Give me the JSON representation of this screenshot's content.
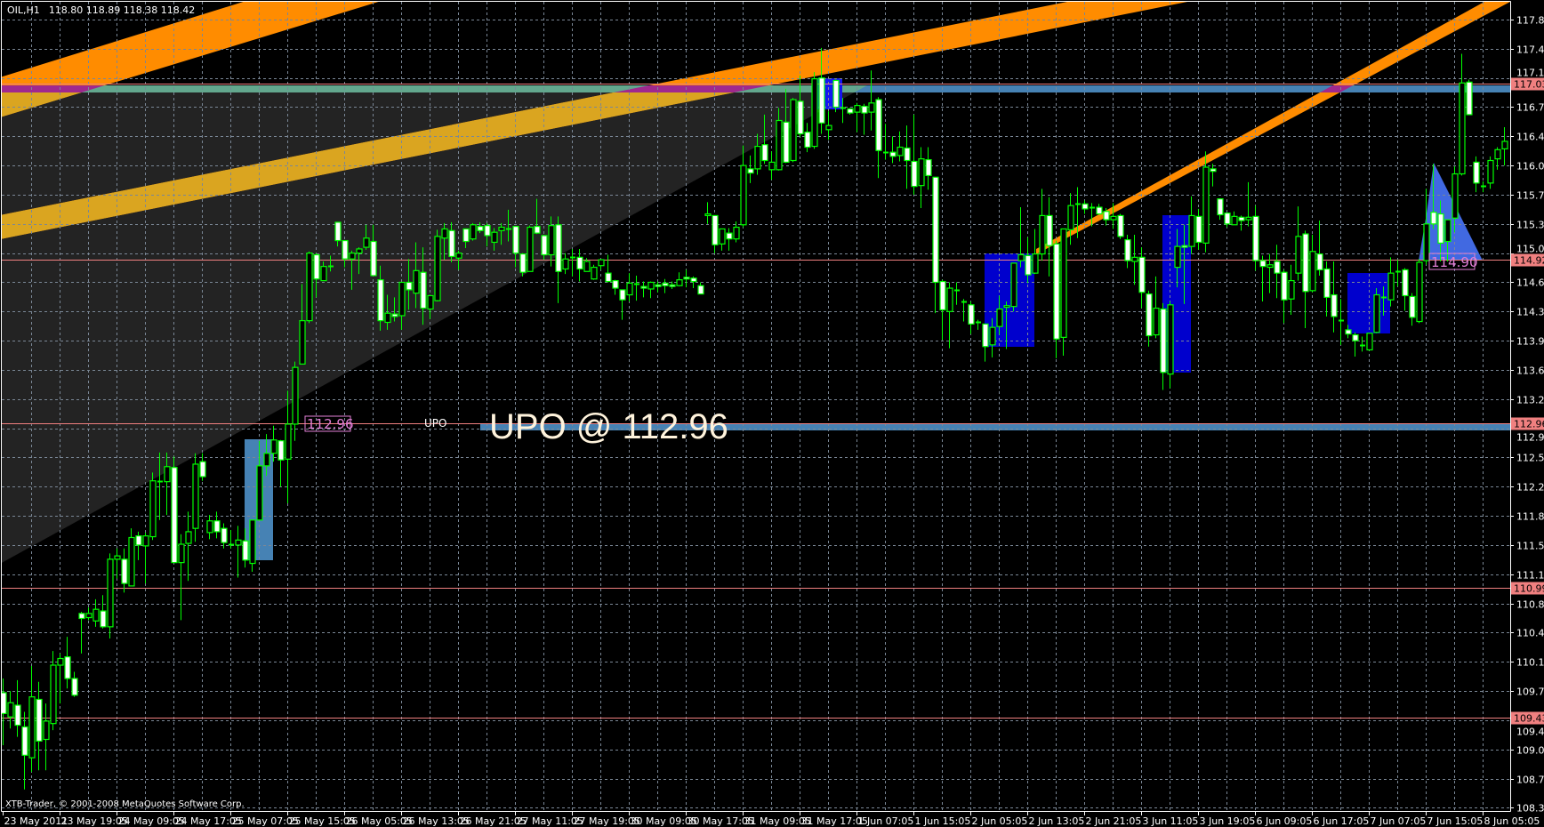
{
  "title": {
    "symbol": "OIL,H1",
    "ohlc": "118.80 118.89 118.38 118.42"
  },
  "copyright": "XTB-Trader, © 2001-2008 MetaQuotes Software Corp.",
  "colors": {
    "background": "#000000",
    "grid": "#7A8796",
    "candle_outline": "#00FF00",
    "bear_fill": "#FFFFFF",
    "bull_fill": "#000000",
    "price_line": "#F08080",
    "channel": "#FF8C00",
    "channel_in_zone": "#DAA520",
    "zone": "#232323",
    "band": "#4682B4",
    "box": "#0000CD",
    "triangle": "#4169E1"
  },
  "annotations": {
    "label_114_90": "114.90",
    "label_112_96": "112.96",
    "upo_small": "UPO",
    "upo_big": "UPO @ 112.96"
  },
  "chart_data": {
    "type": "candlestick",
    "timeframe": "H1",
    "ylim": [
      108.2,
      117.99
    ],
    "grid": true,
    "y_ticks": [
      "117.80",
      "117.45",
      "117.10",
      "116.75",
      "116.40",
      "116.05",
      "115.70",
      "115.35",
      "115.00",
      "114.65",
      "114.30",
      "113.95",
      "113.60",
      "113.25",
      "112.90",
      "112.55",
      "112.20",
      "111.85",
      "111.50",
      "111.15",
      "110.80",
      "110.45",
      "110.10",
      "109.75",
      "109.40",
      "109.05",
      "108.70",
      "108.35"
    ],
    "x_ticks": [
      "23 May 2011",
      "23 May 19:05",
      "24 May 09:05",
      "24 May 17:05",
      "25 May 07:05",
      "25 May 15:05",
      "26 May 05:05",
      "26 May 13:05",
      "26 May 21:05",
      "27 May 11:05",
      "27 May 19:05",
      "30 May 09:05",
      "30 May 17:05",
      "31 May 09:05",
      "31 May 17:05",
      "1 Jun 07:05",
      "1 Jun 15:05",
      "2 Jun 05:05",
      "2 Jun 13:05",
      "2 Jun 21:05",
      "3 Jun 11:05",
      "3 Jun 19:05",
      "6 Jun 09:05",
      "6 Jun 17:05",
      "7 Jun 07:05",
      "7 Jun 15:05",
      "8 Jun 05:05"
    ],
    "price_lines": [
      {
        "price": 117.03,
        "label": "117.03"
      },
      {
        "price": 114.92,
        "label": "114.92"
      },
      {
        "price": 112.96,
        "label": "112.96"
      },
      {
        "price": 110.99,
        "label": "110.99"
      },
      {
        "price": 109.43,
        "label": "109.43"
      }
    ],
    "candles_ohlc": [
      [
        109.73,
        109.9,
        109.1,
        109.48
      ],
      [
        109.44,
        109.75,
        109.3,
        109.61
      ],
      [
        109.58,
        109.88,
        109.2,
        109.34
      ],
      [
        109.32,
        109.5,
        108.57,
        108.98
      ],
      [
        108.95,
        110.05,
        108.78,
        109.68
      ],
      [
        109.65,
        109.86,
        108.8,
        109.15
      ],
      [
        109.17,
        109.6,
        108.8,
        109.39
      ],
      [
        109.36,
        110.23,
        109.28,
        110.06
      ],
      [
        110.06,
        110.2,
        109.6,
        110.14
      ],
      [
        110.16,
        110.4,
        109.78,
        109.9
      ],
      [
        109.9,
        109.98,
        109.68,
        109.7
      ],
      [
        110.68,
        110.7,
        110.2,
        110.62
      ],
      [
        110.63,
        110.75,
        110.6,
        110.68
      ],
      [
        110.59,
        110.85,
        110.52,
        110.73
      ],
      [
        110.71,
        110.9,
        110.5,
        110.52
      ],
      [
        110.52,
        111.4,
        110.38,
        111.33
      ],
      [
        111.33,
        111.46,
        111.1,
        111.37
      ],
      [
        111.33,
        111.46,
        110.93,
        111.04
      ],
      [
        111.01,
        111.7,
        111.01,
        111.59
      ],
      [
        111.61,
        111.66,
        111.32,
        111.5
      ],
      [
        111.49,
        111.65,
        111.04,
        111.61
      ],
      [
        111.6,
        112.37,
        111.56,
        112.27
      ],
      [
        112.27,
        112.61,
        111.8,
        112.27
      ],
      [
        112.26,
        112.61,
        111.86,
        112.44
      ],
      [
        112.43,
        112.56,
        111.29,
        111.29
      ],
      [
        111.29,
        111.63,
        110.6,
        111.51
      ],
      [
        111.52,
        111.9,
        111.07,
        111.66
      ],
      [
        111.7,
        112.6,
        111.54,
        112.47
      ],
      [
        112.5,
        112.6,
        112.27,
        112.32
      ],
      [
        111.65,
        111.86,
        111.57,
        111.79
      ],
      [
        111.79,
        111.9,
        111.58,
        111.66
      ],
      [
        111.7,
        111.76,
        111.46,
        111.53
      ],
      [
        111.51,
        111.68,
        111.46,
        111.51
      ],
      [
        111.5,
        111.73,
        111.11,
        111.56
      ],
      [
        111.55,
        111.7,
        111.23,
        111.32
      ],
      [
        111.28,
        111.8,
        111.18,
        111.8
      ],
      [
        111.8,
        112.75,
        111.8,
        112.45
      ],
      [
        112.45,
        112.83,
        112.33,
        112.6
      ],
      [
        112.6,
        112.93,
        112.5,
        112.76
      ],
      [
        112.75,
        112.76,
        112.2,
        112.52
      ],
      [
        112.53,
        113.35,
        112.0,
        112.95
      ],
      [
        112.95,
        113.7,
        112.75,
        113.63
      ],
      [
        113.67,
        114.63,
        113.67,
        114.19
      ],
      [
        114.19,
        115.02,
        114.16,
        115.0
      ],
      [
        114.98,
        115.0,
        114.47,
        114.69
      ],
      [
        114.67,
        114.9,
        114.67,
        114.84
      ],
      [
        114.85,
        114.97,
        114.78,
        114.85
      ],
      [
        115.37,
        115.37,
        115.08,
        115.15
      ],
      [
        115.15,
        115.15,
        114.83,
        114.93
      ],
      [
        114.93,
        115.03,
        114.56,
        115.0
      ],
      [
        115.0,
        115.07,
        114.75,
        115.05
      ],
      [
        115.07,
        115.34,
        115.04,
        115.18
      ],
      [
        115.14,
        115.34,
        114.73,
        114.73
      ],
      [
        114.68,
        114.85,
        114.07,
        114.19
      ],
      [
        114.17,
        114.5,
        114.08,
        114.28
      ],
      [
        114.27,
        114.47,
        114.18,
        114.24
      ],
      [
        114.25,
        114.65,
        114.08,
        114.65
      ],
      [
        114.65,
        114.93,
        114.32,
        114.56
      ],
      [
        114.52,
        115.13,
        114.34,
        114.79
      ],
      [
        114.77,
        115.07,
        114.14,
        114.34
      ],
      [
        114.33,
        114.5,
        114.21,
        114.49
      ],
      [
        114.43,
        115.28,
        114.42,
        115.2
      ],
      [
        115.18,
        115.36,
        114.92,
        115.29
      ],
      [
        115.27,
        115.37,
        114.89,
        114.96
      ],
      [
        114.94,
        115.03,
        114.8,
        115.0
      ],
      [
        115.29,
        115.29,
        115.06,
        115.14
      ],
      [
        115.17,
        115.36,
        115.15,
        115.34
      ],
      [
        115.32,
        115.37,
        115.24,
        115.27
      ],
      [
        115.33,
        115.36,
        115.08,
        115.21
      ],
      [
        115.13,
        115.3,
        115.03,
        115.25
      ],
      [
        115.27,
        115.36,
        115.1,
        115.31
      ],
      [
        115.3,
        115.52,
        115.14,
        115.3
      ],
      [
        115.32,
        115.32,
        114.83,
        115.0
      ],
      [
        114.99,
        115.0,
        114.72,
        114.77
      ],
      [
        114.78,
        115.33,
        114.78,
        115.31
      ],
      [
        115.32,
        115.65,
        115.23,
        115.24
      ],
      [
        115.21,
        115.22,
        114.92,
        114.98
      ],
      [
        114.98,
        115.44,
        114.84,
        115.33
      ],
      [
        115.34,
        115.44,
        114.4,
        114.78
      ],
      [
        114.81,
        115.0,
        114.75,
        114.93
      ],
      [
        114.95,
        115.05,
        114.72,
        114.95
      ],
      [
        114.95,
        115.05,
        114.66,
        114.81
      ],
      [
        114.78,
        114.94,
        114.78,
        114.9
      ],
      [
        114.69,
        114.86,
        114.68,
        114.83
      ],
      [
        114.85,
        114.93,
        114.8,
        114.92
      ],
      [
        114.76,
        114.98,
        114.65,
        114.66
      ],
      [
        114.67,
        114.68,
        114.5,
        114.58
      ],
      [
        114.56,
        114.56,
        114.2,
        114.44
      ],
      [
        114.5,
        114.76,
        114.42,
        114.64
      ],
      [
        114.63,
        114.73,
        114.43,
        114.63
      ],
      [
        114.6,
        114.66,
        114.47,
        114.58
      ],
      [
        114.57,
        114.66,
        114.46,
        114.65
      ],
      [
        114.62,
        114.66,
        114.53,
        114.6
      ],
      [
        114.64,
        114.69,
        114.52,
        114.61
      ],
      [
        114.62,
        114.66,
        114.57,
        114.6
      ],
      [
        114.61,
        114.77,
        114.6,
        114.68
      ],
      [
        114.71,
        114.8,
        114.59,
        114.69
      ],
      [
        114.7,
        114.72,
        114.58,
        114.66
      ],
      [
        114.61,
        114.65,
        114.51,
        114.51
      ],
      [
        115.45,
        115.61,
        115.35,
        115.47
      ],
      [
        115.45,
        115.45,
        115.0,
        115.1
      ],
      [
        115.11,
        115.29,
        115.03,
        115.29
      ],
      [
        115.24,
        115.3,
        115.03,
        115.17
      ],
      [
        115.17,
        115.38,
        115.13,
        115.31
      ],
      [
        115.34,
        116.29,
        115.31,
        116.05
      ],
      [
        116.01,
        116.17,
        115.84,
        115.96
      ],
      [
        116.01,
        116.43,
        115.94,
        116.28
      ],
      [
        116.3,
        116.66,
        116.07,
        116.11
      ],
      [
        116.0,
        116.22,
        115.88,
        116.09
      ],
      [
        116.0,
        116.74,
        115.99,
        116.59
      ],
      [
        116.57,
        116.97,
        116.08,
        116.09
      ],
      [
        116.11,
        116.86,
        116.09,
        116.84
      ],
      [
        116.82,
        117.13,
        116.39,
        116.43
      ],
      [
        116.45,
        116.56,
        116.21,
        116.27
      ],
      [
        116.28,
        117.17,
        116.25,
        117.09
      ],
      [
        117.1,
        117.46,
        116.43,
        116.56
      ],
      [
        116.48,
        116.7,
        116.36,
        116.53
      ],
      [
        117.07,
        117.08,
        116.69,
        116.75
      ],
      [
        116.74,
        116.86,
        116.56,
        116.73
      ],
      [
        116.73,
        116.74,
        116.66,
        116.68
      ],
      [
        116.69,
        116.8,
        116.45,
        116.77
      ],
      [
        116.76,
        116.79,
        116.42,
        116.68
      ],
      [
        116.69,
        117.19,
        116.47,
        116.8
      ],
      [
        116.84,
        116.87,
        115.9,
        116.23
      ],
      [
        116.21,
        116.55,
        116.12,
        116.2
      ],
      [
        116.21,
        116.4,
        116.08,
        116.16
      ],
      [
        116.17,
        116.46,
        116.1,
        116.27
      ],
      [
        116.26,
        116.53,
        115.77,
        116.11
      ],
      [
        116.1,
        116.66,
        115.7,
        115.8
      ],
      [
        115.81,
        116.27,
        115.54,
        116.13
      ],
      [
        116.12,
        116.27,
        115.76,
        115.93
      ],
      [
        115.91,
        115.91,
        114.28,
        114.65
      ],
      [
        114.66,
        114.68,
        113.96,
        114.32
      ],
      [
        114.3,
        114.65,
        113.86,
        114.58
      ],
      [
        114.56,
        114.65,
        114.38,
        114.56
      ],
      [
        114.42,
        114.45,
        114.18,
        114.42
      ],
      [
        114.38,
        114.42,
        114.03,
        114.15
      ],
      [
        114.18,
        114.2,
        114.08,
        114.18
      ],
      [
        114.15,
        114.15,
        113.7,
        113.88
      ],
      [
        113.9,
        114.22,
        113.75,
        114.11
      ],
      [
        114.12,
        114.49,
        114.02,
        114.33
      ],
      [
        114.35,
        114.42,
        113.85,
        114.37
      ],
      [
        114.36,
        114.88,
        114.3,
        114.88
      ],
      [
        114.91,
        115.55,
        114.83,
        114.98
      ],
      [
        114.97,
        115.19,
        114.64,
        114.74
      ],
      [
        114.76,
        115.29,
        114.75,
        114.99
      ],
      [
        114.99,
        115.77,
        114.91,
        115.45
      ],
      [
        115.45,
        115.67,
        114.72,
        115.09
      ],
      [
        115.11,
        115.15,
        113.74,
        113.97
      ],
      [
        113.99,
        115.29,
        113.77,
        115.29
      ],
      [
        115.28,
        115.72,
        115.1,
        115.57
      ],
      [
        115.59,
        115.79,
        115.18,
        115.59
      ],
      [
        115.59,
        115.63,
        115.47,
        115.53
      ],
      [
        115.55,
        115.6,
        115.32,
        115.55
      ],
      [
        115.55,
        115.59,
        115.46,
        115.47
      ],
      [
        115.5,
        115.54,
        115.33,
        115.4
      ],
      [
        115.4,
        115.6,
        115.29,
        115.44
      ],
      [
        115.45,
        115.47,
        115.17,
        115.2
      ],
      [
        115.16,
        115.22,
        114.82,
        114.91
      ],
      [
        114.9,
        115.22,
        114.62,
        114.95
      ],
      [
        114.95,
        115.07,
        114.34,
        114.53
      ],
      [
        114.51,
        114.55,
        113.88,
        114.01
      ],
      [
        114.02,
        114.72,
        113.98,
        114.34
      ],
      [
        114.33,
        114.4,
        113.36,
        113.57
      ],
      [
        113.55,
        114.42,
        113.38,
        114.38
      ],
      [
        114.83,
        115.29,
        114.59,
        115.08
      ],
      [
        115.09,
        115.34,
        114.39,
        115.07
      ],
      [
        115.08,
        115.68,
        114.99,
        115.45
      ],
      [
        115.44,
        115.53,
        115.04,
        115.13
      ],
      [
        115.12,
        116.22,
        115.01,
        116.03
      ],
      [
        116.01,
        116.07,
        115.8,
        115.98
      ],
      [
        115.65,
        115.65,
        115.4,
        115.46
      ],
      [
        115.48,
        115.48,
        115.31,
        115.35
      ],
      [
        115.34,
        115.5,
        115.34,
        115.44
      ],
      [
        115.43,
        115.45,
        115.27,
        115.39
      ],
      [
        115.4,
        115.85,
        115.32,
        115.43
      ],
      [
        115.44,
        115.57,
        114.79,
        114.91
      ],
      [
        114.91,
        114.97,
        114.42,
        114.84
      ],
      [
        114.83,
        114.99,
        114.52,
        114.86
      ],
      [
        114.9,
        115.1,
        114.46,
        114.76
      ],
      [
        114.77,
        114.8,
        114.16,
        114.44
      ],
      [
        114.45,
        114.86,
        114.26,
        114.67
      ],
      [
        114.76,
        115.56,
        114.67,
        115.2
      ],
      [
        115.23,
        115.27,
        114.1,
        114.54
      ],
      [
        114.55,
        115.22,
        114.53,
        115.02
      ],
      [
        114.99,
        115.39,
        114.73,
        114.8
      ],
      [
        114.81,
        114.9,
        114.24,
        114.47
      ],
      [
        114.5,
        114.9,
        114.05,
        114.24
      ],
      [
        114.2,
        114.45,
        113.9,
        114.2
      ],
      [
        114.08,
        114.14,
        113.98,
        114.03
      ],
      [
        114.02,
        114.05,
        113.76,
        113.95
      ],
      [
        113.9,
        114.0,
        113.82,
        113.9
      ],
      [
        113.84,
        114.04,
        113.83,
        114.04
      ],
      [
        114.05,
        114.58,
        114.04,
        114.5
      ],
      [
        114.47,
        114.6,
        114.25,
        114.47
      ],
      [
        114.44,
        114.95,
        114.36,
        114.76
      ],
      [
        114.78,
        114.92,
        114.6,
        114.78
      ],
      [
        114.8,
        114.82,
        114.31,
        114.49
      ],
      [
        114.48,
        114.52,
        114.13,
        114.23
      ],
      [
        114.18,
        114.93,
        114.16,
        114.89
      ],
      [
        114.91,
        115.77,
        114.86,
        115.35
      ],
      [
        115.49,
        116.07,
        115.29,
        115.35
      ],
      [
        115.47,
        115.63,
        114.9,
        115.12
      ],
      [
        115.14,
        115.4,
        114.9,
        115.4
      ],
      [
        115.42,
        116.04,
        115.25,
        115.95
      ],
      [
        115.95,
        117.39,
        115.93,
        117.04
      ],
      [
        117.05,
        117.08,
        116.66,
        116.66
      ],
      [
        116.09,
        116.16,
        115.73,
        115.84
      ],
      [
        115.81,
        115.86,
        115.73,
        115.81
      ],
      [
        115.84,
        116.16,
        115.77,
        116.11
      ],
      [
        116.13,
        116.27,
        116.0,
        116.24
      ],
      [
        116.25,
        116.51,
        116.05,
        116.34
      ]
    ]
  }
}
